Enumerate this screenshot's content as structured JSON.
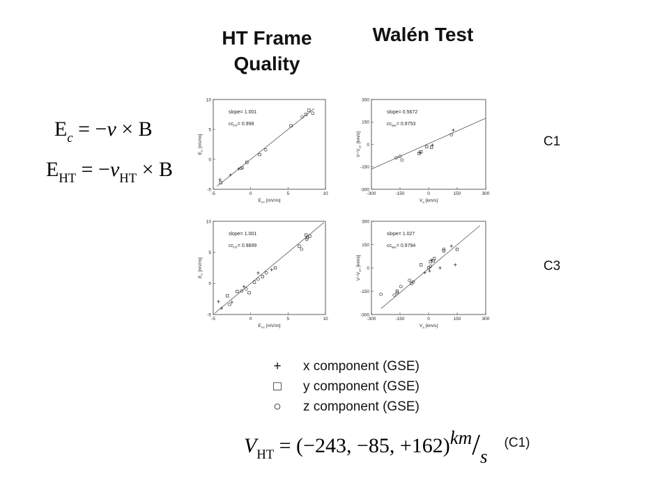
{
  "headings": {
    "ht_frame": [
      "HT Frame",
      "Quality"
    ],
    "walen": "Walén Test"
  },
  "row_labels": [
    "C1",
    "C3"
  ],
  "equations": [
    [
      [
        "E",
        ""
      ],
      [
        "c",
        "isub"
      ],
      [
        " = −",
        ""
      ],
      [
        "ν",
        "i"
      ],
      [
        " × B",
        ""
      ]
    ],
    [
      [
        "E",
        ""
      ],
      [
        "HT",
        "sub"
      ],
      [
        " = −",
        ""
      ],
      [
        "ν",
        "i"
      ],
      [
        "HT",
        "sub"
      ],
      [
        " × B",
        ""
      ]
    ],
    [
      [
        "V",
        "i"
      ],
      [
        "HT",
        "sub"
      ],
      [
        " = (−243, −85, +162)",
        ""
      ],
      [
        "km",
        "isup"
      ],
      [
        "/",
        "slash"
      ],
      [
        "s",
        "isub2"
      ]
    ]
  ],
  "equation_note": "(C1)",
  "legend": [
    {
      "symbol": "+",
      "label": "x component  (GSE)"
    },
    {
      "symbol": "□",
      "label": "y component  (GSE)"
    },
    {
      "symbol": "○",
      "label": "z component  (GSE)"
    }
  ],
  "chart_data": [
    {
      "type": "scatter",
      "xlabel": [
        [
          "E",
          ""
        ],
        [
          "HT",
          "sub"
        ],
        [
          " [mV/m]",
          ""
        ]
      ],
      "ylabel": [
        [
          "E",
          ""
        ],
        [
          "C",
          "sub"
        ],
        [
          " [mV/m]",
          ""
        ]
      ],
      "annotations": [
        [
          [
            "slope= 1.001",
            ""
          ]
        ],
        [
          [
            "cc",
            ""
          ],
          [
            "HT",
            "sub"
          ],
          [
            "= 0.998",
            ""
          ]
        ]
      ],
      "xlim": [
        -5,
        10
      ],
      "ylim": [
        -5,
        10
      ],
      "xticks": [
        -5,
        0,
        5,
        10
      ],
      "yticks": [
        -5,
        0,
        5,
        10
      ],
      "series": [
        {
          "marker": "plus",
          "x": [
            -4.1,
            -2.7,
            -1.6
          ],
          "values": [
            -3.4,
            -2.6,
            -1.6
          ]
        },
        {
          "marker": "square",
          "x": [
            -4.0,
            -0.5,
            1.2,
            5.4,
            7.4,
            7.8
          ],
          "values": [
            -3.9,
            -0.5,
            0.8,
            5.6,
            7.5,
            8.2
          ]
        },
        {
          "marker": "circle",
          "x": [
            -1.3,
            -1.1,
            2.0,
            6.9,
            8.3
          ],
          "values": [
            -1.5,
            -1.4,
            1.6,
            7.1,
            7.7
          ]
        }
      ],
      "fit": {
        "x": [
          -4.5,
          8.5
        ],
        "values": [
          -4.5,
          8.5
        ]
      }
    },
    {
      "type": "scatter",
      "xlabel": [
        [
          "V",
          ""
        ],
        [
          "A",
          "sub"
        ],
        [
          " [km/s]",
          ""
        ]
      ],
      "ylabel": [
        [
          "V−V",
          ""
        ],
        [
          "HT",
          "sub"
        ],
        [
          " [km/s]",
          ""
        ]
      ],
      "annotations": [
        [
          [
            "slope= 0.5672",
            ""
          ]
        ],
        [
          [
            "cc",
            ""
          ],
          [
            "WA",
            "sub"
          ],
          [
            "= 0.9753",
            ""
          ]
        ]
      ],
      "xlim": [
        -300,
        300
      ],
      "ylim": [
        -300,
        300
      ],
      "xticks": [
        -300,
        -150,
        0,
        150,
        300
      ],
      "yticks": [
        -300,
        -150,
        0,
        150,
        300
      ],
      "series": [
        {
          "marker": "plus",
          "x": [
            -45,
            20,
            130
          ],
          "values": [
            -55,
            -5,
            95
          ]
        },
        {
          "marker": "square",
          "x": [
            -50,
            -40,
            -10,
            15
          ],
          "values": [
            -60,
            -50,
            -15,
            -20
          ]
        },
        {
          "marker": "circle",
          "x": [
            -170,
            -150,
            -140,
            120
          ],
          "values": [
            -90,
            -80,
            -105,
            65
          ]
        }
      ],
      "fit": {
        "x": [
          -300,
          300
        ],
        "values": [
          -165,
          175
        ]
      }
    },
    {
      "type": "scatter",
      "xlabel": [
        [
          "E",
          ""
        ],
        [
          "HT",
          "sub"
        ],
        [
          " [mV/m]",
          ""
        ]
      ],
      "ylabel": [
        [
          "E",
          ""
        ],
        [
          "C",
          "sub"
        ],
        [
          " [mV/m]",
          ""
        ]
      ],
      "annotations": [
        [
          [
            "slope= 1.001",
            ""
          ]
        ],
        [
          [
            "cc",
            ""
          ],
          [
            "HT",
            "sub"
          ],
          [
            "= 0.9899",
            ""
          ]
        ]
      ],
      "xlim": [
        -5,
        10
      ],
      "ylim": [
        -5,
        10
      ],
      "xticks": [
        -5,
        0,
        5,
        10
      ],
      "yticks": [
        -5,
        0,
        5,
        10
      ],
      "series": [
        {
          "marker": "plus",
          "x": [
            -4.3,
            -3.9,
            -2.5,
            -0.9,
            1.0,
            2.8
          ],
          "values": [
            -2.9,
            -4.0,
            -3.0,
            -0.5,
            1.7,
            2.2
          ]
        },
        {
          "marker": "square",
          "x": [
            -3.1,
            -1.8,
            -0.2,
            0.5,
            1.6,
            3.3,
            6.5,
            7.4,
            7.6,
            7.9
          ],
          "values": [
            -2.0,
            -1.3,
            -1.5,
            0.2,
            1.1,
            2.5,
            6.0,
            7.8,
            7.4,
            7.6
          ]
        },
        {
          "marker": "circle",
          "x": [
            -2.8,
            -1.2,
            -0.6,
            1.0,
            2.1,
            6.8,
            7.5
          ],
          "values": [
            -3.4,
            -1.2,
            -0.9,
            0.7,
            1.7,
            5.5,
            7.1
          ]
        }
      ],
      "fit": {
        "x": [
          -4.8,
          9.8
        ],
        "values": [
          -4.8,
          9.8
        ]
      }
    },
    {
      "type": "scatter",
      "xlabel": [
        [
          "V",
          ""
        ],
        [
          "A",
          "sub"
        ],
        [
          " [km/s]",
          ""
        ]
      ],
      "ylabel": [
        [
          "V−V",
          ""
        ],
        [
          "HT",
          "sub"
        ],
        [
          " [km/s]",
          ""
        ]
      ],
      "annotations": [
        [
          [
            "slope= 1.027",
            ""
          ]
        ],
        [
          [
            "cc",
            ""
          ],
          [
            "WA",
            "sub"
          ],
          [
            "= 0.9794",
            ""
          ]
        ]
      ],
      "xlim": [
        -300,
        300
      ],
      "ylim": [
        -300,
        300
      ],
      "xticks": [
        -300,
        -150,
        0,
        150,
        300
      ],
      "yticks": [
        -300,
        -150,
        0,
        150,
        300
      ],
      "series": [
        {
          "marker": "plus",
          "x": [
            -20,
            5,
            15,
            60,
            120,
            140
          ],
          "values": [
            -30,
            -20,
            50,
            0,
            140,
            20
          ]
        },
        {
          "marker": "square",
          "x": [
            -165,
            -90,
            -40,
            0,
            10,
            25,
            30,
            80,
            150
          ],
          "values": [
            -150,
            -100,
            20,
            0,
            40,
            45,
            60,
            110,
            120
          ]
        },
        {
          "marker": "circle",
          "x": [
            -250,
            -180,
            -165,
            -145,
            -100,
            -80,
            10,
            80
          ],
          "values": [
            -170,
            -175,
            -160,
            -120,
            -80,
            -90,
            10,
            120
          ]
        }
      ],
      "fit": {
        "x": [
          -250,
          270
        ],
        "values": [
          -262,
          272
        ]
      }
    }
  ]
}
